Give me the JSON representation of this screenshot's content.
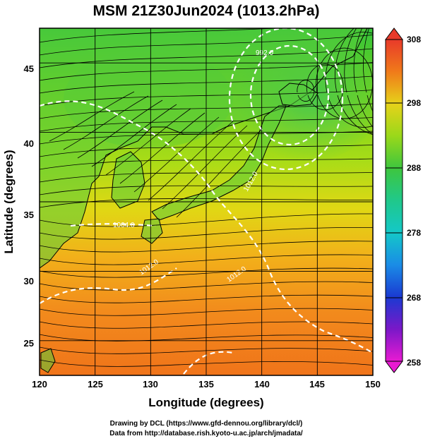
{
  "figure": {
    "title": "MSM 21Z30Jun2024 (1013.2hPa)",
    "xlabel": "Longitude (degrees)",
    "ylabel": "Latitude  (degrees)",
    "credit_line1": "Drawing by DCL (https://www.gfd-dennou.org/library/dcl/)",
    "credit_line2": "Data from http://database.rish.kyoto-u.ac.jp/arch/jmadata/"
  },
  "map": {
    "lon_ticks": [
      "120",
      "125",
      "130",
      "135",
      "140",
      "145",
      "150"
    ],
    "lat_ticks": [
      "25",
      "30",
      "35",
      "40",
      "45"
    ],
    "lon_range": [
      120,
      150
    ],
    "lat_range": [
      22.5,
      47.5
    ],
    "field": "temperature (K) with wind streamlines and white dashed pressure contours",
    "isobar_labels": [
      "992.0",
      "1004.0",
      "1012.0",
      "1012.0",
      "1012.0"
    ],
    "colors": {
      "warm": "#f07a1a",
      "mid": "#d9e01a",
      "cool": "#3ec63e",
      "isobar": "#ffffff",
      "streamline": "#000000"
    }
  },
  "colorbar": {
    "ticks": [
      "308",
      "298",
      "288",
      "278",
      "268",
      "258"
    ],
    "range": [
      258,
      308
    ]
  }
}
